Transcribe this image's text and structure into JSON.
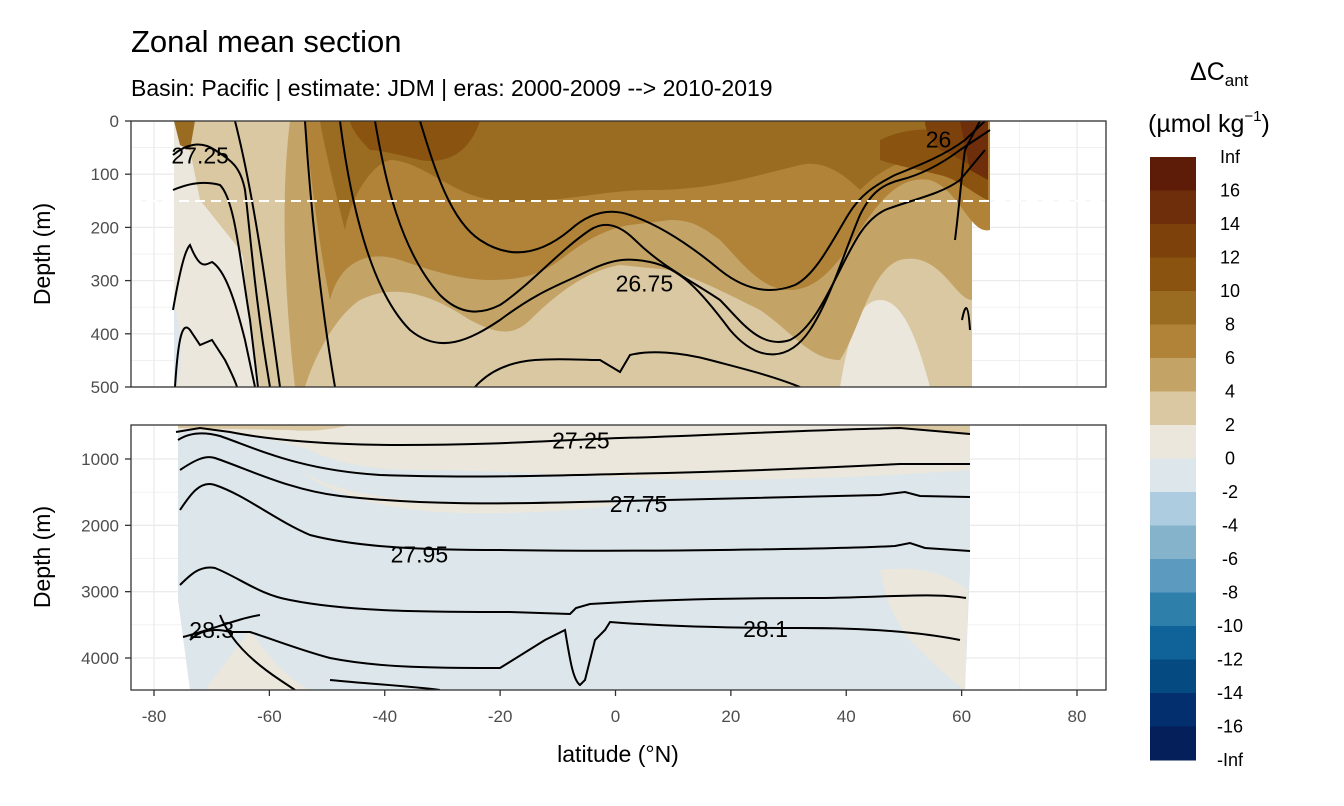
{
  "chart_data": {
    "type": "heatmap",
    "title": "Zonal mean section",
    "subtitle": "Basin: Pacific | estimate: JDM  | eras: 2000-2009 --> 2010-2019",
    "xlabel": "latitude (°N)",
    "ylabel": "Depth (m)",
    "x_ticks": [
      -80,
      -60,
      -40,
      -20,
      0,
      20,
      40,
      60,
      80
    ],
    "xlim": [
      -82,
      85
    ],
    "grid": true,
    "panels": [
      {
        "name": "upper",
        "ylim": [
          0,
          500
        ],
        "y_ticks": [
          0,
          100,
          200,
          300,
          400,
          500
        ],
        "reference_depth": 150
      },
      {
        "name": "lower",
        "ylim": [
          500,
          4500
        ],
        "y_ticks": [
          1000,
          2000,
          3000,
          4000
        ]
      }
    ],
    "legend": {
      "title_main": "ΔC",
      "title_sub": "ant",
      "unit_a": "(µmol kg",
      "unit_sup": "−1",
      "unit_b": ")",
      "position": "right",
      "bins": [
        {
          "label": "Inf",
          "color": "#5d1c07"
        },
        {
          "label": "16",
          "color": "#6e2e0b"
        },
        {
          "label": "14",
          "color": "#7d420c"
        },
        {
          "label": "12",
          "color": "#8a530f"
        },
        {
          "label": "10",
          "color": "#9a6c22"
        },
        {
          "label": "8",
          "color": "#b08338"
        },
        {
          "label": "6",
          "color": "#c4a366"
        },
        {
          "label": "4",
          "color": "#dac8a2"
        },
        {
          "label": "2",
          "color": "#ece7dc"
        },
        {
          "label": "0",
          "color": "#dde6ea"
        },
        {
          "label": "-2",
          "color": "#aecce0"
        },
        {
          "label": "-4",
          "color": "#85b3cc"
        },
        {
          "label": "-6",
          "color": "#5c9ac0"
        },
        {
          "label": "-8",
          "color": "#2f7fab"
        },
        {
          "label": "-10",
          "color": "#0f6399"
        },
        {
          "label": "-12",
          "color": "#064a82"
        },
        {
          "label": "-14",
          "color": "#042f6e"
        },
        {
          "label": "-16",
          "color": "#051f5a"
        },
        {
          "label": "-Inf",
          "color": ""
        }
      ]
    },
    "isopycnal_labels": [
      {
        "text": "27.25",
        "lat": -72,
        "depth": 65,
        "panel": "upper"
      },
      {
        "text": "26",
        "lat": 56,
        "depth": 35,
        "panel": "upper"
      },
      {
        "text": "26.75",
        "lat": 5,
        "depth": 305,
        "panel": "upper"
      },
      {
        "text": "27.25",
        "lat": -6,
        "depth": 720,
        "panel": "lower"
      },
      {
        "text": "27.75",
        "lat": 4,
        "depth": 1680,
        "panel": "lower"
      },
      {
        "text": "27.95",
        "lat": -34,
        "depth": 2440,
        "panel": "lower"
      },
      {
        "text": "28.3",
        "lat": -70,
        "depth": 3580,
        "panel": "lower"
      },
      {
        "text": "28.1",
        "lat": 26,
        "depth": 3560,
        "panel": "lower"
      }
    ]
  }
}
